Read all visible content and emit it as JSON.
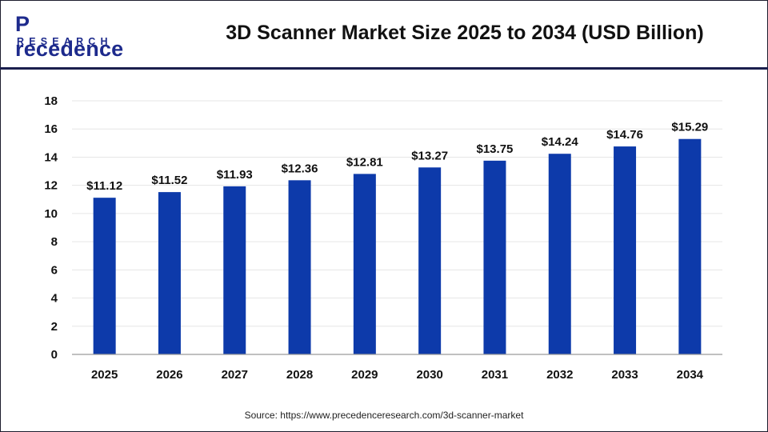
{
  "logo": {
    "main": "recedence",
    "initial": "P",
    "sub": "RESEARCH"
  },
  "title": "3D Scanner Market Size 2025 to 2034 (USD Billion)",
  "source": "Source: https://www.precedenceresearch.com/3d-scanner-market",
  "colors": {
    "bar": "#0d3aaa",
    "brand": "#1d2a8c",
    "grid": "#e6e6e6",
    "axis": "#9a9a9a",
    "text": "#111111"
  },
  "chart_data": {
    "type": "bar",
    "categories": [
      "2025",
      "2026",
      "2027",
      "2028",
      "2029",
      "2030",
      "2031",
      "2032",
      "2033",
      "2034"
    ],
    "values": [
      11.12,
      11.52,
      11.93,
      12.36,
      12.81,
      13.27,
      13.75,
      14.24,
      14.76,
      15.29
    ],
    "data_labels": [
      "$11.12",
      "$11.52",
      "$11.93",
      "$12.36",
      "$12.81",
      "$13.27",
      "$13.75",
      "$14.24",
      "$14.76",
      "$15.29"
    ],
    "yticks": [
      0,
      2,
      4,
      6,
      8,
      10,
      12,
      14,
      16,
      18
    ],
    "ylim": [
      0,
      18
    ],
    "grid": true,
    "xlabel": "",
    "ylabel": ""
  }
}
